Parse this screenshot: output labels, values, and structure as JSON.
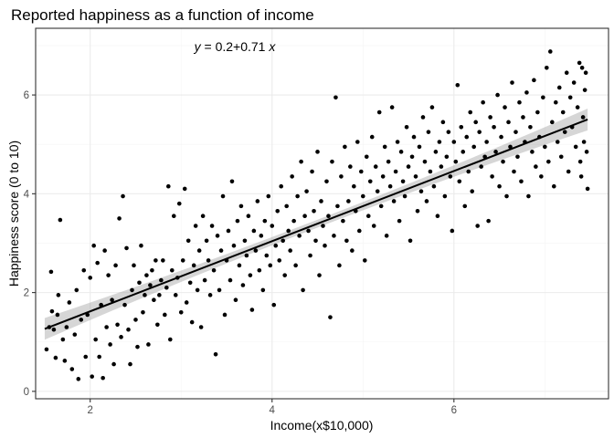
{
  "chart_data": {
    "type": "scatter",
    "title": "Reported happiness as a function of income",
    "xlabel": "Income(x$10,000)",
    "ylabel": "Happiness score (0 to 10)",
    "xlim": [
      1.4,
      7.7
    ],
    "ylim": [
      -0.15,
      7.35
    ],
    "xticks": [
      2,
      4,
      6
    ],
    "yticks": [
      0,
      2,
      4,
      6
    ],
    "xtick_labels": [
      "2",
      "4",
      "6"
    ],
    "ytick_labels": [
      "0",
      "2",
      "4",
      "6"
    ],
    "grid": true,
    "annotation": {
      "text_parts": [
        "y",
        " = 0.2+0.71 ",
        "x"
      ],
      "x": 3.7,
      "y": 6.95
    },
    "regression": {
      "intercept": 0.2,
      "slope": 0.71,
      "x_range": [
        1.5,
        7.47
      ],
      "ci_half_width_min": 0.08,
      "ci_half_width_max": 0.22,
      "ci_color": "#999999"
    },
    "point_color": "#000000",
    "points": [
      [
        1.52,
        0.85
      ],
      [
        1.55,
        1.3
      ],
      [
        1.57,
        2.42
      ],
      [
        1.58,
        1.62
      ],
      [
        1.6,
        1.25
      ],
      [
        1.62,
        0.68
      ],
      [
        1.64,
        1.55
      ],
      [
        1.65,
        1.95
      ],
      [
        1.67,
        3.47
      ],
      [
        1.7,
        1.05
      ],
      [
        1.72,
        0.62
      ],
      [
        1.74,
        1.3
      ],
      [
        1.77,
        1.8
      ],
      [
        1.8,
        0.45
      ],
      [
        1.83,
        1.15
      ],
      [
        1.85,
        2.05
      ],
      [
        1.87,
        0.25
      ],
      [
        1.9,
        1.45
      ],
      [
        1.93,
        2.45
      ],
      [
        1.95,
        0.7
      ],
      [
        1.97,
        1.55
      ],
      [
        2.0,
        2.3
      ],
      [
        2.02,
        0.3
      ],
      [
        2.04,
        2.95
      ],
      [
        2.06,
        1.05
      ],
      [
        2.08,
        2.6
      ],
      [
        2.1,
        0.7
      ],
      [
        2.12,
        1.75
      ],
      [
        2.14,
        0.27
      ],
      [
        2.16,
        2.85
      ],
      [
        2.18,
        1.3
      ],
      [
        2.2,
        2.35
      ],
      [
        2.22,
        0.95
      ],
      [
        2.24,
        1.85
      ],
      [
        2.26,
        0.55
      ],
      [
        2.28,
        2.55
      ],
      [
        2.3,
        1.35
      ],
      [
        2.32,
        3.5
      ],
      [
        2.34,
        1.1
      ],
      [
        2.36,
        3.95
      ],
      [
        2.38,
        1.75
      ],
      [
        2.4,
        2.9
      ],
      [
        2.42,
        1.25
      ],
      [
        2.44,
        0.55
      ],
      [
        2.46,
        2.05
      ],
      [
        2.48,
        2.55
      ],
      [
        2.5,
        1.45
      ],
      [
        2.52,
        0.9
      ],
      [
        2.54,
        2.2
      ],
      [
        2.56,
        2.95
      ],
      [
        2.58,
        1.6
      ],
      [
        2.6,
        1.95
      ],
      [
        2.62,
        2.35
      ],
      [
        2.64,
        0.95
      ],
      [
        2.66,
        2.15
      ],
      [
        2.68,
        2.45
      ],
      [
        2.7,
        1.85
      ],
      [
        2.72,
        2.65
      ],
      [
        2.74,
        1.35
      ],
      [
        2.76,
        1.95
      ],
      [
        2.78,
        2.25
      ],
      [
        2.8,
        2.65
      ],
      [
        2.82,
        1.55
      ],
      [
        2.84,
        2.1
      ],
      [
        2.86,
        4.15
      ],
      [
        2.88,
        1.05
      ],
      [
        2.9,
        2.45
      ],
      [
        2.92,
        3.55
      ],
      [
        2.94,
        1.95
      ],
      [
        2.96,
        2.3
      ],
      [
        2.98,
        3.8
      ],
      [
        3.0,
        1.6
      ],
      [
        3.02,
        2.65
      ],
      [
        3.04,
        4.1
      ],
      [
        3.06,
        1.8
      ],
      [
        3.08,
        3.05
      ],
      [
        3.1,
        2.2
      ],
      [
        3.12,
        1.4
      ],
      [
        3.14,
        2.55
      ],
      [
        3.16,
        3.35
      ],
      [
        3.18,
        2.05
      ],
      [
        3.2,
        2.85
      ],
      [
        3.22,
        1.3
      ],
      [
        3.24,
        3.55
      ],
      [
        3.26,
        2.25
      ],
      [
        3.28,
        3.05
      ],
      [
        3.3,
        2.65
      ],
      [
        3.32,
        1.95
      ],
      [
        3.34,
        3.35
      ],
      [
        3.36,
        2.45
      ],
      [
        3.38,
        0.75
      ],
      [
        3.4,
        3.15
      ],
      [
        3.42,
        2.05
      ],
      [
        3.44,
        2.85
      ],
      [
        3.46,
        3.95
      ],
      [
        3.48,
        1.55
      ],
      [
        3.5,
        2.65
      ],
      [
        3.52,
        3.25
      ],
      [
        3.54,
        2.25
      ],
      [
        3.56,
        4.25
      ],
      [
        3.58,
        2.95
      ],
      [
        3.6,
        1.85
      ],
      [
        3.62,
        3.45
      ],
      [
        3.64,
        2.55
      ],
      [
        3.66,
        3.75
      ],
      [
        3.68,
        2.15
      ],
      [
        3.7,
        3.05
      ],
      [
        3.72,
        2.75
      ],
      [
        3.74,
        3.55
      ],
      [
        3.76,
        2.35
      ],
      [
        3.78,
        1.65
      ],
      [
        3.8,
        3.25
      ],
      [
        3.82,
        2.85
      ],
      [
        3.84,
        3.85
      ],
      [
        3.86,
        2.45
      ],
      [
        3.88,
        3.15
      ],
      [
        3.9,
        2.05
      ],
      [
        3.92,
        3.45
      ],
      [
        3.94,
        2.75
      ],
      [
        3.96,
        3.95
      ],
      [
        3.98,
        2.55
      ],
      [
        4.0,
        3.35
      ],
      [
        4.02,
        1.75
      ],
      [
        4.04,
        2.95
      ],
      [
        4.06,
        3.65
      ],
      [
        4.08,
        2.65
      ],
      [
        4.1,
        4.15
      ],
      [
        4.12,
        3.05
      ],
      [
        4.14,
        2.35
      ],
      [
        4.16,
        3.75
      ],
      [
        4.18,
        3.25
      ],
      [
        4.2,
        2.85
      ],
      [
        4.22,
        4.35
      ],
      [
        4.24,
        3.45
      ],
      [
        4.26,
        2.55
      ],
      [
        4.28,
        3.95
      ],
      [
        4.3,
        3.15
      ],
      [
        4.32,
        4.65
      ],
      [
        4.34,
        2.05
      ],
      [
        4.36,
        3.55
      ],
      [
        4.38,
        4.05
      ],
      [
        4.4,
        3.25
      ],
      [
        4.42,
        2.75
      ],
      [
        4.44,
        4.45
      ],
      [
        4.46,
        3.65
      ],
      [
        4.48,
        3.05
      ],
      [
        4.5,
        4.85
      ],
      [
        4.52,
        2.35
      ],
      [
        4.54,
        3.85
      ],
      [
        4.56,
        3.35
      ],
      [
        4.58,
        2.95
      ],
      [
        4.6,
        4.25
      ],
      [
        4.62,
        3.55
      ],
      [
        4.64,
        1.5
      ],
      [
        4.66,
        4.65
      ],
      [
        4.68,
        3.15
      ],
      [
        4.7,
        5.95
      ],
      [
        4.72,
        3.75
      ],
      [
        4.74,
        2.55
      ],
      [
        4.76,
        4.35
      ],
      [
        4.78,
        3.45
      ],
      [
        4.8,
        4.95
      ],
      [
        4.82,
        3.05
      ],
      [
        4.84,
        3.85
      ],
      [
        4.86,
        4.55
      ],
      [
        4.88,
        2.85
      ],
      [
        4.9,
        4.15
      ],
      [
        4.92,
        3.65
      ],
      [
        4.94,
        5.05
      ],
      [
        4.96,
        3.25
      ],
      [
        4.98,
        4.45
      ],
      [
        5.0,
        3.95
      ],
      [
        5.02,
        2.65
      ],
      [
        5.04,
        4.75
      ],
      [
        5.06,
        3.55
      ],
      [
        5.08,
        4.25
      ],
      [
        5.1,
        5.15
      ],
      [
        5.12,
        3.35
      ],
      [
        5.14,
        4.55
      ],
      [
        5.16,
        4.05
      ],
      [
        5.18,
        5.65
      ],
      [
        5.2,
        3.75
      ],
      [
        5.22,
        4.35
      ],
      [
        5.24,
        4.95
      ],
      [
        5.26,
        3.15
      ],
      [
        5.28,
        4.65
      ],
      [
        5.3,
        4.15
      ],
      [
        5.32,
        5.75
      ],
      [
        5.34,
        3.85
      ],
      [
        5.36,
        4.45
      ],
      [
        5.38,
        5.05
      ],
      [
        5.4,
        3.45
      ],
      [
        5.42,
        4.85
      ],
      [
        5.44,
        4.25
      ],
      [
        5.46,
        3.95
      ],
      [
        5.48,
        5.35
      ],
      [
        5.5,
        4.55
      ],
      [
        5.52,
        3.05
      ],
      [
        5.54,
        4.75
      ],
      [
        5.56,
        5.15
      ],
      [
        5.58,
        4.35
      ],
      [
        5.6,
        3.65
      ],
      [
        5.62,
        4.95
      ],
      [
        5.64,
        4.05
      ],
      [
        5.66,
        5.55
      ],
      [
        5.68,
        4.65
      ],
      [
        5.7,
        3.85
      ],
      [
        5.72,
        5.25
      ],
      [
        5.74,
        4.45
      ],
      [
        5.76,
        5.75
      ],
      [
        5.78,
        4.15
      ],
      [
        5.8,
        4.85
      ],
      [
        5.82,
        3.55
      ],
      [
        5.84,
        5.05
      ],
      [
        5.86,
        4.55
      ],
      [
        5.88,
        5.45
      ],
      [
        5.9,
        3.95
      ],
      [
        5.92,
        4.75
      ],
      [
        5.94,
        5.25
      ],
      [
        5.96,
        4.35
      ],
      [
        5.98,
        3.25
      ],
      [
        6.0,
        5.05
      ],
      [
        6.02,
        4.65
      ],
      [
        6.04,
        6.2
      ],
      [
        6.06,
        4.25
      ],
      [
        6.08,
        5.35
      ],
      [
        6.1,
        4.85
      ],
      [
        6.12,
        3.75
      ],
      [
        6.14,
        5.15
      ],
      [
        6.16,
        4.45
      ],
      [
        6.18,
        5.65
      ],
      [
        6.2,
        4.05
      ],
      [
        6.22,
        4.95
      ],
      [
        6.24,
        5.45
      ],
      [
        6.26,
        3.35
      ],
      [
        6.28,
        5.25
      ],
      [
        6.3,
        4.55
      ],
      [
        6.32,
        5.85
      ],
      [
        6.34,
        4.75
      ],
      [
        6.36,
        5.05
      ],
      [
        6.38,
        3.45
      ],
      [
        6.4,
        5.55
      ],
      [
        6.42,
        4.35
      ],
      [
        6.44,
        5.35
      ],
      [
        6.46,
        4.85
      ],
      [
        6.48,
        6.0
      ],
      [
        6.5,
        4.15
      ],
      [
        6.52,
        5.15
      ],
      [
        6.54,
        4.65
      ],
      [
        6.56,
        5.75
      ],
      [
        6.58,
        3.95
      ],
      [
        6.6,
        5.45
      ],
      [
        6.62,
        4.95
      ],
      [
        6.64,
        6.25
      ],
      [
        6.66,
        4.45
      ],
      [
        6.68,
        5.25
      ],
      [
        6.7,
        4.75
      ],
      [
        6.72,
        5.85
      ],
      [
        6.74,
        4.25
      ],
      [
        6.76,
        5.55
      ],
      [
        6.78,
        5.05
      ],
      [
        6.8,
        6.05
      ],
      [
        6.82,
        3.95
      ],
      [
        6.84,
        5.35
      ],
      [
        6.86,
        4.85
      ],
      [
        6.88,
        6.3
      ],
      [
        6.9,
        4.55
      ],
      [
        6.92,
        5.65
      ],
      [
        6.94,
        5.15
      ],
      [
        6.96,
        4.35
      ],
      [
        6.98,
        5.95
      ],
      [
        7.0,
        4.95
      ],
      [
        7.02,
        6.55
      ],
      [
        7.04,
        4.65
      ],
      [
        7.06,
        6.88
      ],
      [
        7.08,
        5.45
      ],
      [
        7.1,
        4.15
      ],
      [
        7.12,
        5.85
      ],
      [
        7.14,
        5.05
      ],
      [
        7.16,
        6.15
      ],
      [
        7.18,
        4.75
      ],
      [
        7.2,
        5.65
      ],
      [
        7.22,
        5.25
      ],
      [
        7.24,
        6.45
      ],
      [
        7.26,
        4.45
      ],
      [
        7.28,
        5.95
      ],
      [
        7.3,
        5.35
      ],
      [
        7.32,
        6.25
      ],
      [
        7.34,
        4.95
      ],
      [
        7.36,
        5.75
      ],
      [
        7.38,
        6.65
      ],
      [
        7.4,
        4.35
      ],
      [
        7.42,
        5.55
      ],
      [
        7.44,
        6.1
      ],
      [
        7.46,
        4.85
      ],
      [
        7.47,
        4.1
      ],
      [
        7.45,
        6.45
      ],
      [
        7.43,
        5.05
      ],
      [
        7.41,
        6.55
      ],
      [
        7.39,
        4.65
      ]
    ]
  }
}
